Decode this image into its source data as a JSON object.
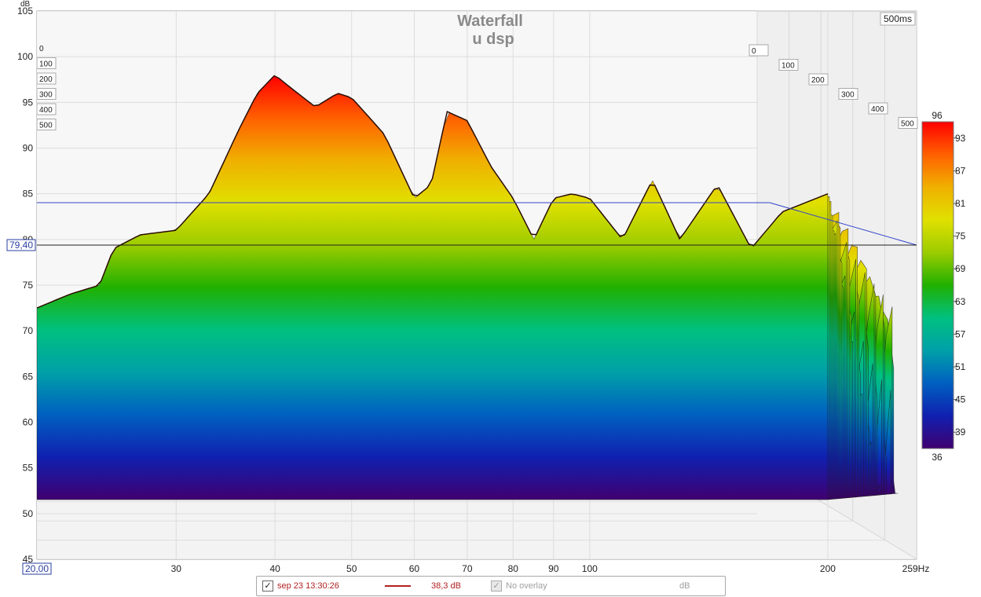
{
  "chart_data": {
    "type": "area",
    "title": "Waterfall",
    "subtitle": "u dsp",
    "ylabel": "dB",
    "ylim": [
      45,
      105
    ],
    "y_ticks": [
      "45",
      "50",
      "55",
      "60",
      "65",
      "70",
      "75",
      "80",
      "85",
      "90",
      "95",
      "100",
      "105"
    ],
    "x_unit": "Hz",
    "xlim": [
      20,
      259
    ],
    "x_scale": "log",
    "x_ticks": [
      "30",
      "40",
      "50",
      "60",
      "70",
      "80",
      "90",
      "100",
      "200"
    ],
    "x_start_label": "20,00",
    "x_end_label": "259Hz",
    "time_ticks_left": [
      "0",
      "100",
      "200",
      "300",
      "400",
      "500"
    ],
    "time_ticks_right": [
      "0",
      "100",
      "200",
      "300",
      "400",
      "500"
    ],
    "time_end_label": "500ms",
    "cursor_value_label": "79,40",
    "colorbar": {
      "min_label": "36",
      "max_label": "96",
      "ticks": [
        "93",
        "87",
        "81",
        "75",
        "69",
        "63",
        "57",
        "51",
        "45",
        "39"
      ],
      "colors": [
        "#ff0000",
        "#ff6000",
        "#f0b000",
        "#e0e000",
        "#9ccc00",
        "#20b000",
        "#00c080",
        "#00a0a8",
        "#0060c0",
        "#1020b0",
        "#400070"
      ]
    },
    "front_slice": {
      "time_ms": 0,
      "x": [
        20,
        22,
        24,
        25,
        27,
        30,
        33,
        36,
        38,
        40,
        42,
        45,
        48,
        50,
        55,
        60,
        63,
        66,
        70,
        75,
        80,
        85,
        90,
        95,
        100,
        110,
        120,
        130,
        145,
        160,
        175,
        200
      ],
      "y": [
        72.5,
        74.0,
        75.0,
        79.0,
        80.5,
        81.0,
        85.0,
        92.0,
        96.0,
        98.0,
        96.5,
        94.5,
        96.0,
        95.5,
        91.5,
        84.5,
        86.0,
        94.0,
        93.0,
        88.0,
        84.5,
        80.0,
        84.5,
        85.0,
        84.5,
        80.0,
        86.5,
        80.0,
        86.0,
        79.0,
        83.0,
        85.0
      ]
    }
  },
  "legend": {
    "series_label": "sep 23 13:30:26",
    "series_checked": "✓",
    "series_value": "38,3 dB",
    "overlay_checked": "✓",
    "overlay_label": "No overlay",
    "unit_label": "dB"
  }
}
